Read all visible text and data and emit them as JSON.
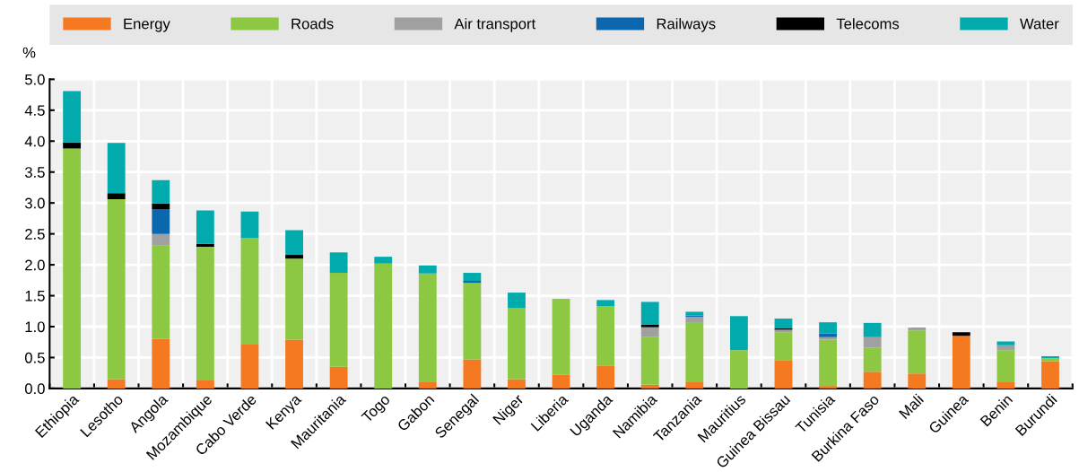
{
  "chart_data": {
    "type": "bar",
    "stacked": true,
    "ylabel": "%",
    "categories": [
      "Ethiopia",
      "Lesotho",
      "Angola",
      "Mozambique",
      "Cabo Verde",
      "Kenya",
      "Mauritania",
      "Togo",
      "Gabon",
      "Senegal",
      "Niger",
      "Liberia",
      "Uganda",
      "Namibia",
      "Tanzania",
      "Mauritius",
      "Guinea Bissau",
      "Tunisia",
      "Burkina Faso",
      "Mali",
      "Guinea",
      "Benin",
      "Burundi"
    ],
    "series": [
      {
        "name": "Energy",
        "color": "#f47920",
        "values": [
          0,
          0.15,
          0.8,
          0.14,
          0.71,
          0.79,
          0.35,
          0,
          0.1,
          0.47,
          0.15,
          0.22,
          0.37,
          0.06,
          0.1,
          0,
          0.45,
          0.04,
          0.27,
          0.24,
          0.85,
          0.1,
          0.44
        ]
      },
      {
        "name": "Roads",
        "color": "#8cc841",
        "values": [
          3.88,
          2.91,
          1.51,
          2.15,
          1.72,
          1.31,
          1.52,
          2.02,
          1.76,
          1.24,
          1.15,
          1.23,
          0.96,
          0.77,
          0.96,
          0.62,
          0.46,
          0.75,
          0.39,
          0.7,
          0,
          0.52,
          0.05
        ]
      },
      {
        "name": "Air transport",
        "color": "#a0a0a0",
        "values": [
          0,
          0,
          0.19,
          0,
          0,
          0,
          null,
          0,
          0,
          0,
          0,
          null,
          0,
          0.16,
          0.1,
          null,
          0.04,
          0.04,
          0.17,
          0.03,
          0,
          0.08,
          0
        ]
      },
      {
        "name": "Railways",
        "color": "#0b68af",
        "values": [
          0,
          0,
          0.4,
          0,
          0,
          0,
          0,
          0,
          0,
          0.03,
          0,
          0,
          0,
          0,
          0.02,
          0,
          0,
          0.06,
          0,
          0,
          0,
          0,
          0
        ]
      },
      {
        "name": "Telecoms",
        "color": "#000000",
        "values": [
          0.1,
          0.1,
          0.09,
          0.05,
          0,
          0.06,
          0,
          0,
          0,
          0,
          0,
          0,
          0,
          0.04,
          0,
          0,
          0.02,
          0,
          0,
          0,
          0.06,
          0,
          0
        ]
      },
      {
        "name": "Water",
        "color": "#00aaad",
        "values": [
          0.83,
          0.81,
          0.38,
          0.54,
          0.43,
          0.4,
          0.33,
          0.11,
          0.13,
          0.13,
          0.25,
          0,
          0.1,
          0.37,
          0.06,
          0.55,
          0.16,
          0.18,
          0.23,
          0.01,
          0,
          0.06,
          0.03
        ]
      }
    ],
    "ylim": [
      0,
      5
    ],
    "yticks": [
      {
        "value": 0,
        "label": "0.0"
      },
      {
        "value": 0.5,
        "label": "0.5"
      },
      {
        "value": 1,
        "label": "1.0"
      },
      {
        "value": 1.5,
        "label": "1.5"
      },
      {
        "value": 2,
        "label": "2.0"
      },
      {
        "value": 2.5,
        "label": "2.5"
      },
      {
        "value": 3,
        "label": "3.0"
      },
      {
        "value": 3.5,
        "label": "3.5"
      },
      {
        "value": 4,
        "label": "4.0"
      },
      {
        "value": 4.5,
        "label": "4.5"
      },
      {
        "value": 5,
        "label": "5.0"
      }
    ],
    "grid": true,
    "legend": "top"
  }
}
